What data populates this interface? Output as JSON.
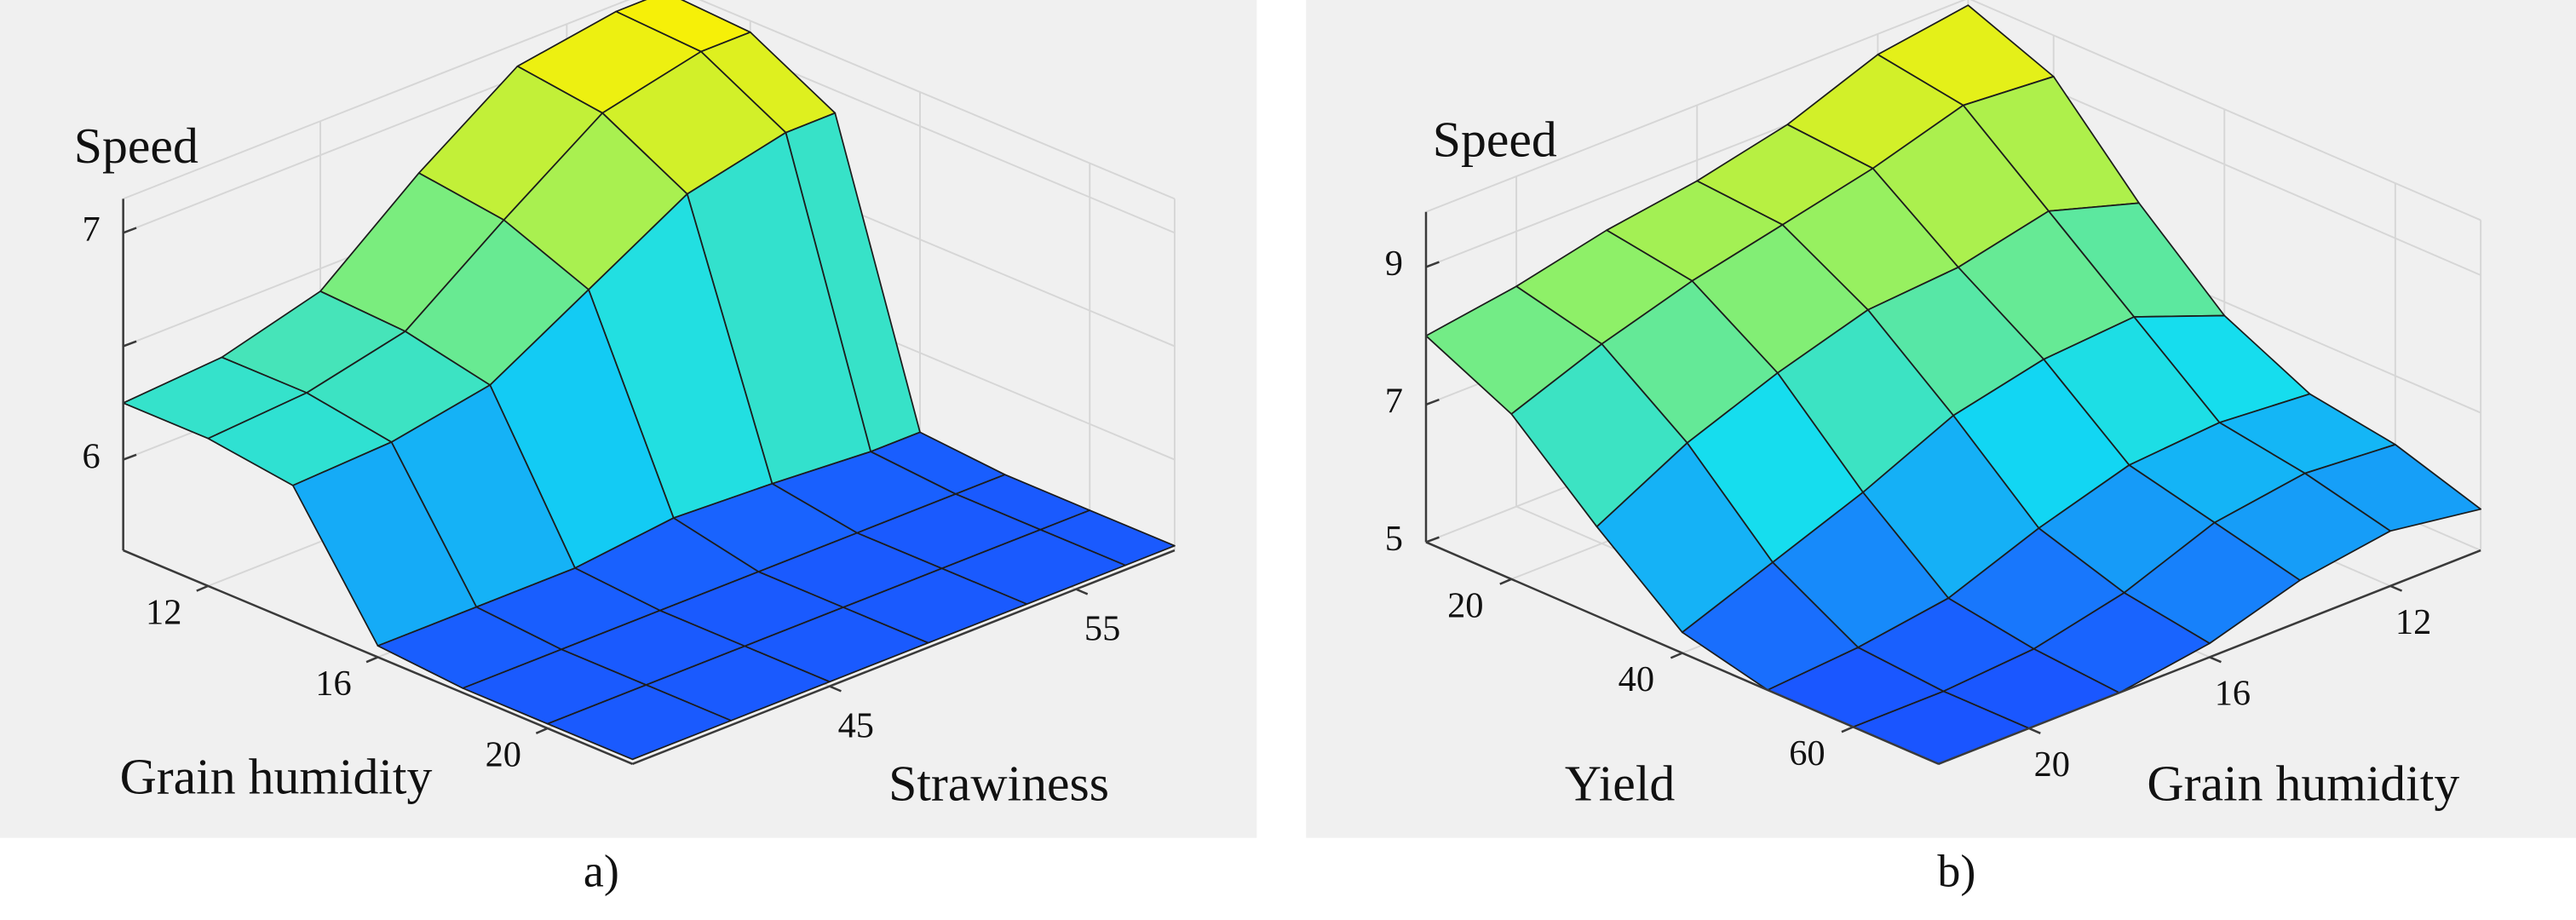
{
  "chart_data": [
    {
      "type": "surface",
      "caption": "a)",
      "z_label": "Speed",
      "x_label": "Grain humidity",
      "y_label": "Strawiness",
      "x": [
        10,
        12,
        14,
        16,
        18,
        20,
        22
      ],
      "y": [
        37,
        41,
        45,
        49,
        53,
        57,
        59
      ],
      "z": [
        [
          6.25,
          6.28,
          6.4,
          6.75,
          7.05,
          7.12,
          7.12
        ],
        [
          6.25,
          6.28,
          6.38,
          6.7,
          7.0,
          7.1,
          7.1
        ],
        [
          6.2,
          6.22,
          6.3,
          6.55,
          6.8,
          6.9,
          6.9
        ],
        [
          5.65,
          5.65,
          5.65,
          5.7,
          5.68,
          5.65,
          5.65
        ],
        [
          5.62,
          5.62,
          5.62,
          5.62,
          5.62,
          5.62,
          5.62
        ],
        [
          5.62,
          5.62,
          5.62,
          5.62,
          5.62,
          5.62,
          5.62
        ],
        [
          5.62,
          5.62,
          5.62,
          5.62,
          5.62,
          5.62,
          5.62
        ]
      ],
      "xlim": [
        10,
        22
      ],
      "ylim": [
        37,
        59
      ],
      "zlim": [
        5.6,
        7.15
      ],
      "xticks": [
        12,
        16,
        20
      ],
      "yticks": [
        45,
        55
      ],
      "zticks": [
        6,
        {
          "value": 6.5,
          "label": null
        },
        7
      ],
      "colormap": [
        "#1a55ff",
        "#12dcf2",
        "#8cf06a",
        "#fff000"
      ],
      "grid": true
    },
    {
      "type": "surface",
      "caption": "b)",
      "z_label": "Speed",
      "x_label": "Yield",
      "y_label": "Grain humidity",
      "x": [
        10,
        20,
        30,
        40,
        50,
        60,
        70
      ],
      "y": [
        22,
        20,
        18,
        16,
        14,
        12,
        10
      ],
      "z": [
        [
          8.0,
          8.2,
          8.5,
          8.7,
          9.0,
          9.5,
          9.7
        ],
        [
          7.4,
          7.9,
          8.3,
          8.6,
          8.9,
          9.3,
          9.2
        ],
        [
          6.3,
          7.0,
          7.5,
          7.9,
          8.0,
          8.3,
          7.9
        ],
        [
          5.3,
          5.8,
          6.3,
          6.9,
          7.2,
          7.3,
          6.8
        ],
        [
          5.0,
          5.1,
          5.3,
          5.8,
          6.2,
          6.3,
          6.2
        ],
        [
          5.0,
          5.0,
          5.1,
          5.4,
          5.9,
          6.1,
          6.0
        ],
        [
          5.0,
          5.0,
          5.0,
          5.2,
          5.6,
          5.8,
          5.6
        ]
      ],
      "xlim": [
        10,
        70
      ],
      "ylim": [
        22,
        10
      ],
      "zlim": [
        5,
        9.8
      ],
      "xticks": [
        20,
        40,
        60
      ],
      "yticks": [
        20,
        16,
        12
      ],
      "zticks": [
        5,
        7,
        9
      ],
      "colormap": [
        "#1a55ff",
        "#12dcf2",
        "#8cf06a",
        "#fff000"
      ],
      "grid": true
    }
  ]
}
